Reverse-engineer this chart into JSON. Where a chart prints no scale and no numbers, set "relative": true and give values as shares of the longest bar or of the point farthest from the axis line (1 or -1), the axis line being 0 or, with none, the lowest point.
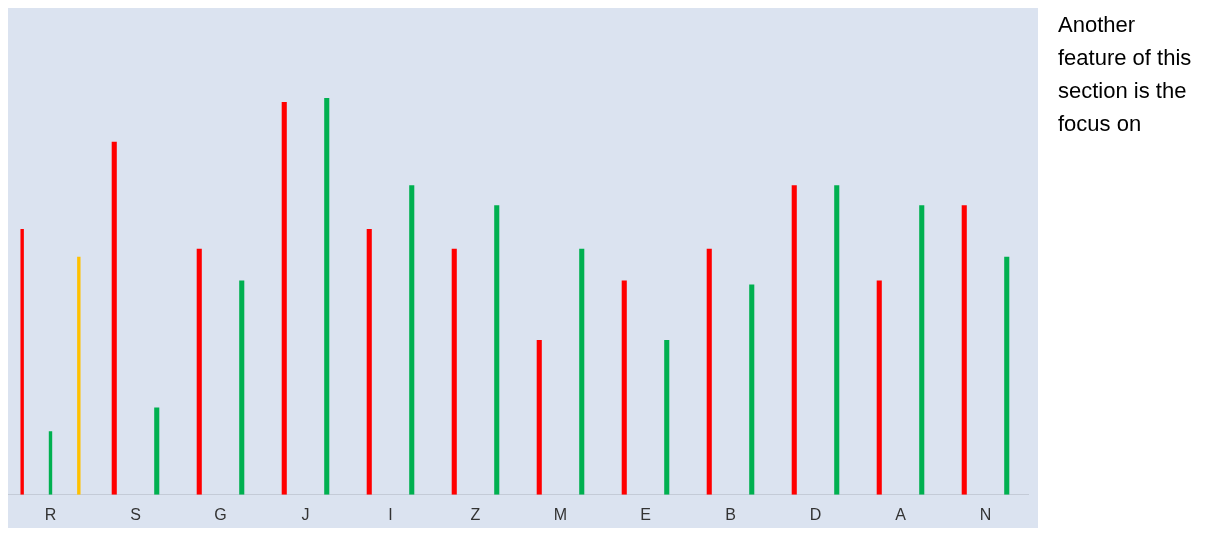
{
  "chart_data": {
    "type": "bar",
    "relative": true,
    "categories": [
      "R",
      "S",
      "G",
      "J",
      "I",
      "Z",
      "M",
      "E",
      "B",
      "D",
      "A",
      "N"
    ],
    "series": [
      {
        "color": "#ff0000",
        "values": [
          0.67,
          0.89,
          0.62,
          0.99,
          0.67,
          0.62,
          0.39,
          0.54,
          0.62,
          0.78,
          0.54,
          0.73
        ]
      },
      {
        "color": "#00b050",
        "values": [
          0.16,
          0.22,
          0.54,
          1,
          0.78,
          0.73,
          0.62,
          0.39,
          0.53,
          0.78,
          0.73,
          0.6
        ]
      },
      {
        "color": "#ffc000",
        "values": [
          0.6,
          null,
          null,
          null,
          null,
          null,
          null,
          null,
          null,
          null,
          null,
          null
        ]
      }
    ],
    "grid": false,
    "legend": false,
    "annotations": [
      "Another feature of this section is the focus on"
    ]
  }
}
